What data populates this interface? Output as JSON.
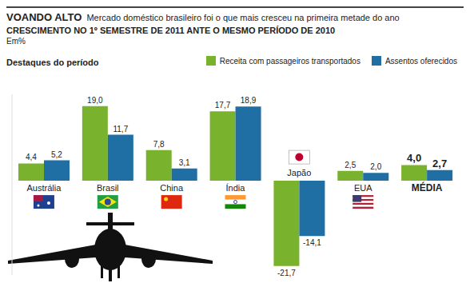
{
  "chart_data": {
    "type": "bar",
    "title": "VOANDO ALTO",
    "subtitle": "Mercado doméstico brasileiro foi o que mais cresceu na primeira metade do ano",
    "annotations": [
      "CRESCIMENTO NO 1º SEMESTRE DE 2011 ANTE O MESMO PERÍODO DE 2010",
      "Destaques do período"
    ],
    "y_label": "Em%",
    "categories": [
      "Austrália",
      "Brasil",
      "China",
      "Índia",
      "Japão",
      "EUA",
      "MÉDIA"
    ],
    "series": [
      {
        "name": "Receita com passageiros transportados",
        "color": "#79b22c",
        "values": [
          4.4,
          19.0,
          7.8,
          17.7,
          -21.7,
          2.5,
          4.0
        ],
        "value_labels": [
          "4,4",
          "19,0",
          "7,8",
          "17,7",
          "-21,7",
          "2,5",
          "4,0"
        ]
      },
      {
        "name": "Assentos oferecidos",
        "color": "#1f6fa5",
        "values": [
          5.2,
          11.7,
          3.1,
          18.9,
          -14.1,
          2.0,
          2.7
        ],
        "value_labels": [
          "5,2",
          "11,7",
          "3,1",
          "18,9",
          "-14,1",
          "2,0",
          "2,7"
        ]
      }
    ],
    "ylim": [
      -24,
      22
    ],
    "data_labels": true,
    "tick_labels": false,
    "grid": false
  }
}
